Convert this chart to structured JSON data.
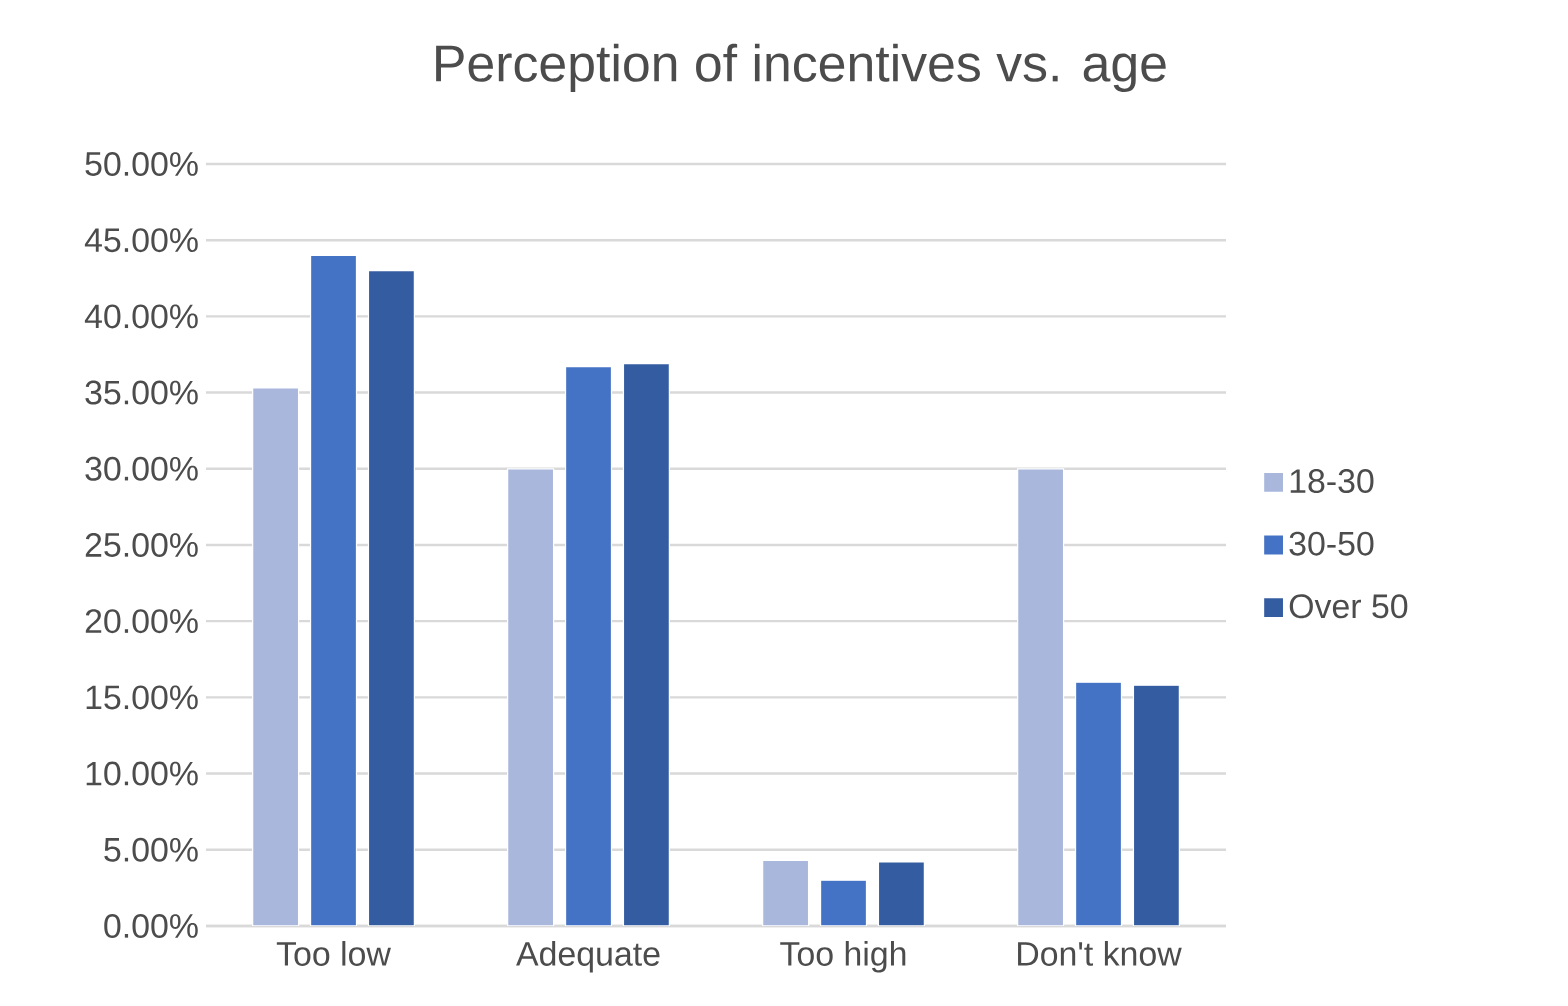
{
  "chart_data": {
    "type": "bar",
    "title": "Perception of incentives vs. age",
    "categories": [
      "Too low",
      "Adequate",
      "Too high",
      "Don't know"
    ],
    "series": [
      {
        "name": "18-30",
        "color": "#a9b7dc",
        "values": [
          35.3,
          30.0,
          4.3,
          30.0
        ]
      },
      {
        "name": "30-50",
        "color": "#4472c4",
        "values": [
          44.0,
          36.7,
          3.0,
          16.0
        ]
      },
      {
        "name": "Over 50",
        "color": "#345ca0",
        "values": [
          43.0,
          36.9,
          4.2,
          15.8
        ]
      }
    ],
    "ylim": [
      0,
      50
    ],
    "yticks": [
      {
        "value": 0,
        "label": "0.00%"
      },
      {
        "value": 5,
        "label": "5.00%"
      },
      {
        "value": 10,
        "label": "10.00%"
      },
      {
        "value": 15,
        "label": "15.00%"
      },
      {
        "value": 20,
        "label": "20.00%"
      },
      {
        "value": 25,
        "label": "25.00%"
      },
      {
        "value": 30,
        "label": "30.00%"
      },
      {
        "value": 35,
        "label": "35.00%"
      },
      {
        "value": 40,
        "label": "40.00%"
      },
      {
        "value": 45,
        "label": "45.00%"
      },
      {
        "value": 50,
        "label": "50.00%"
      }
    ],
    "grid": "y",
    "legend": "right"
  }
}
